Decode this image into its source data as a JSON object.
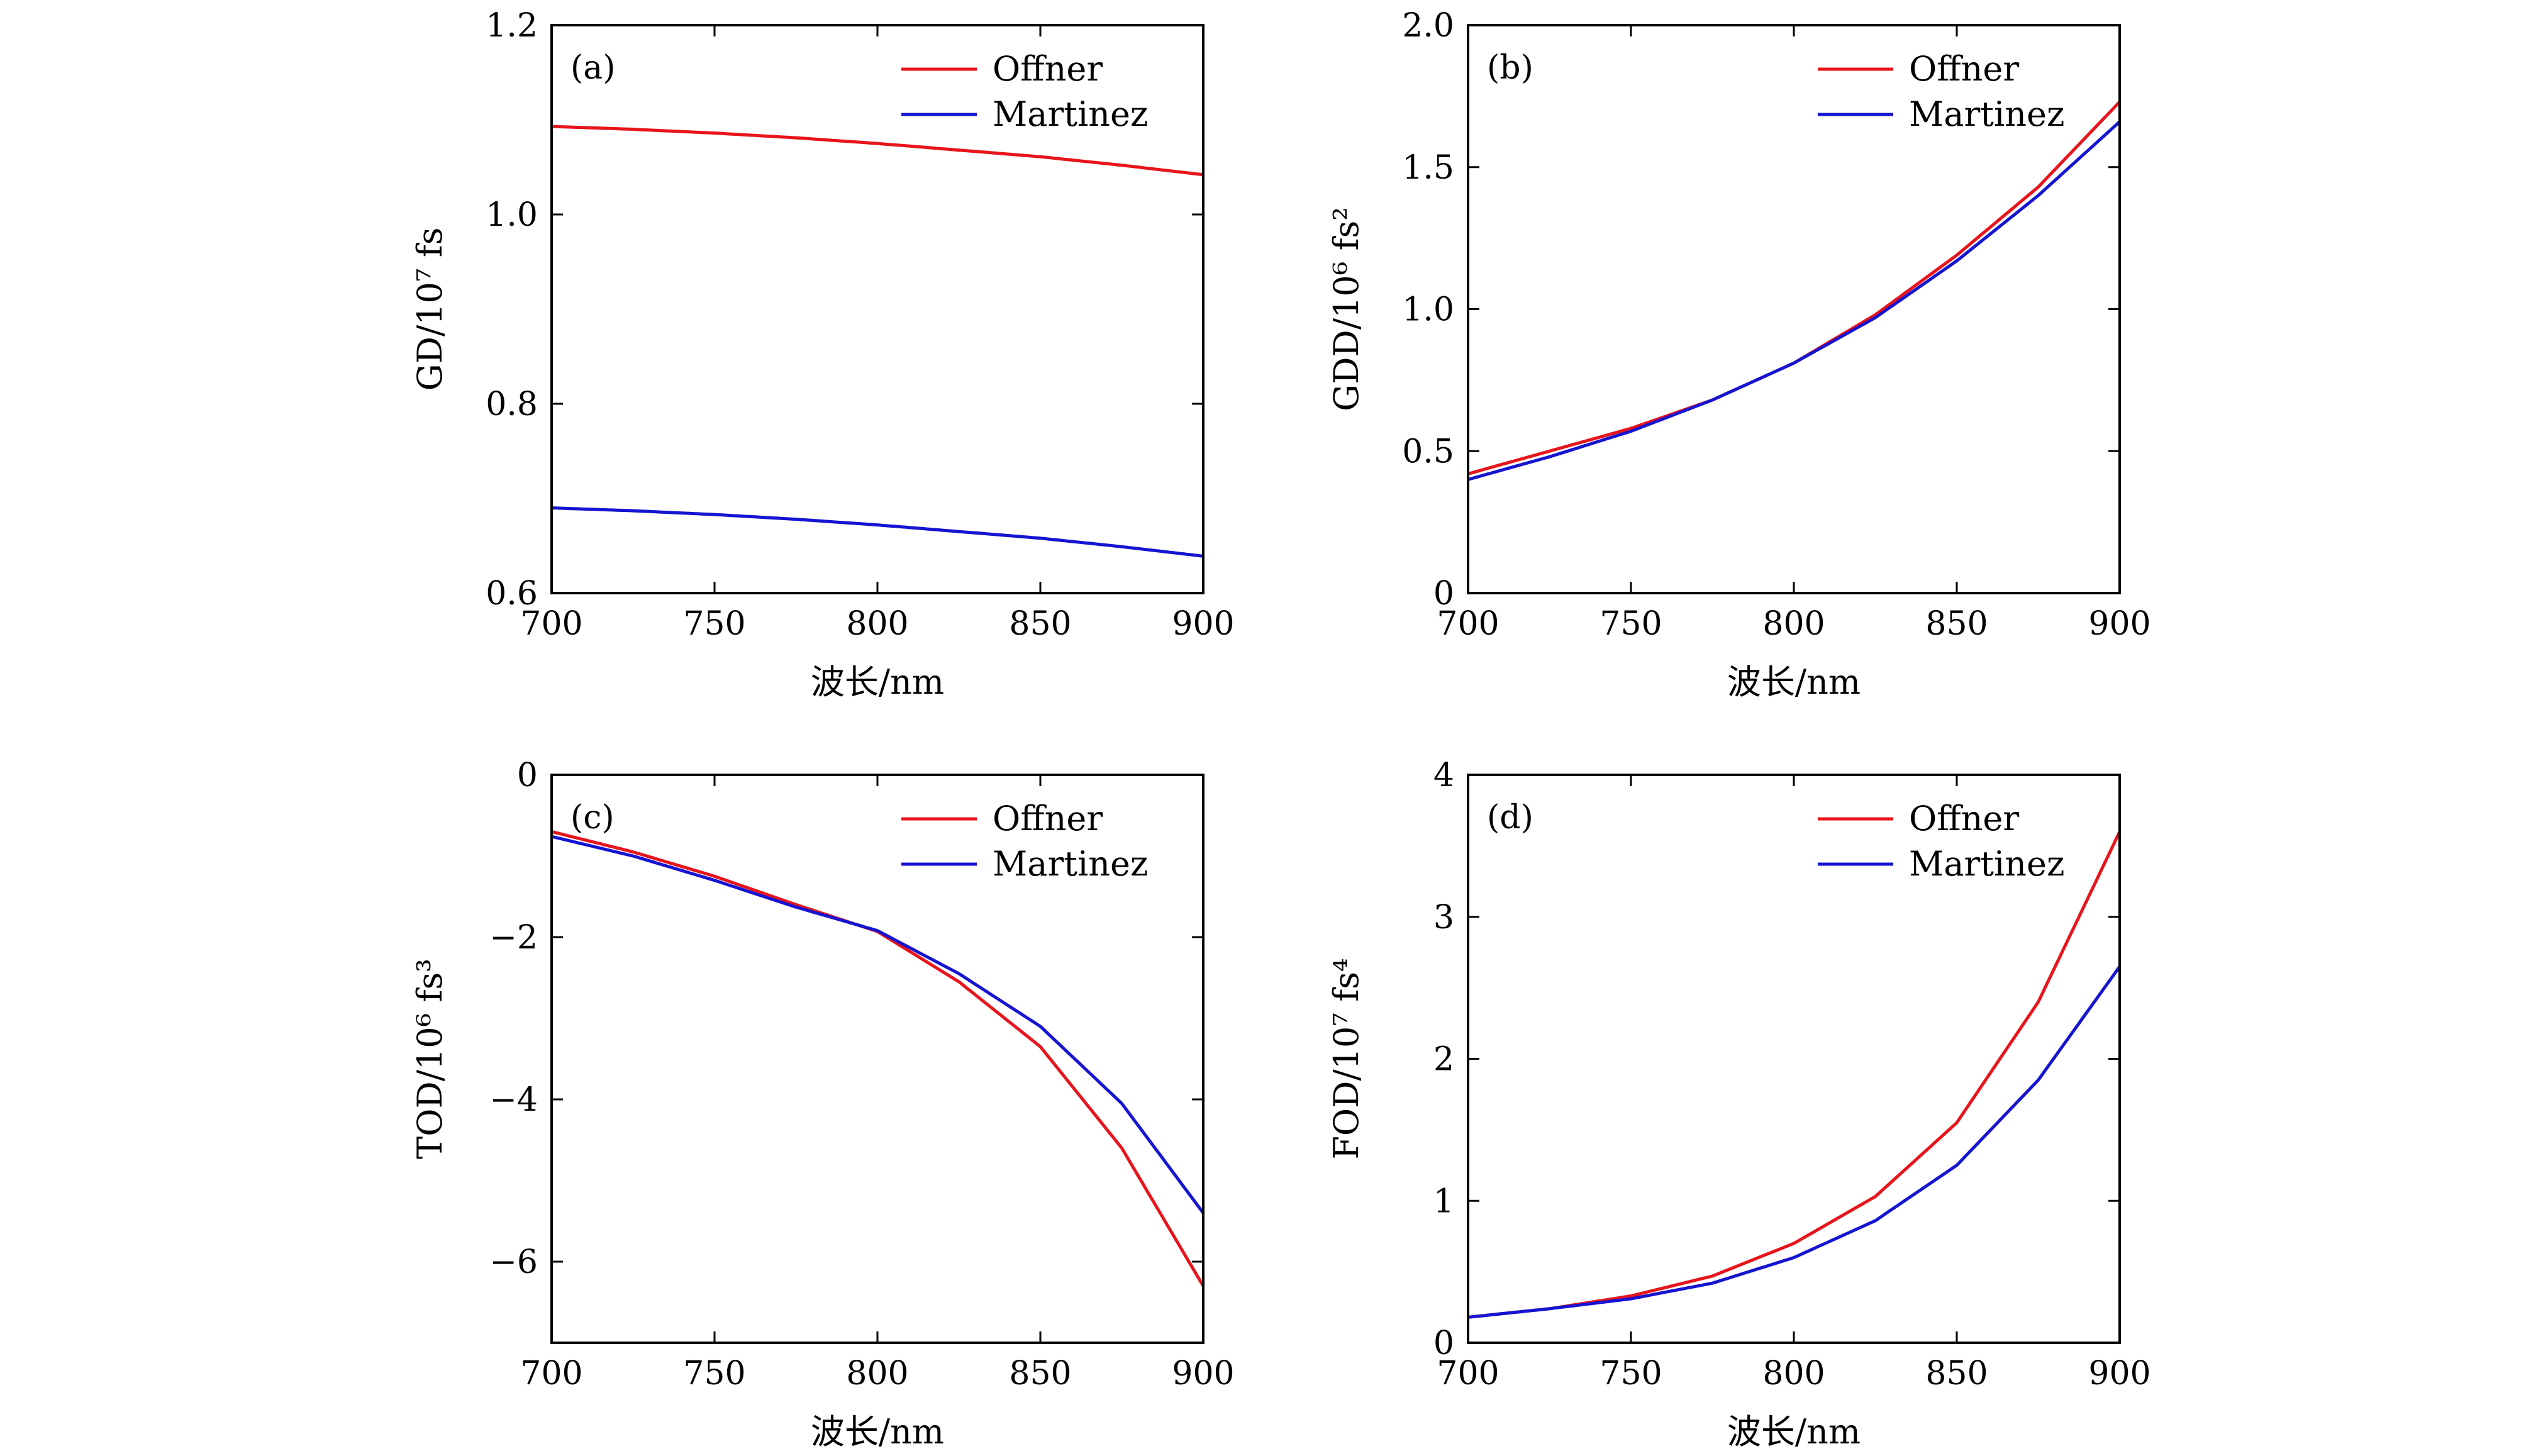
{
  "colors": {
    "offner": "#e8141c",
    "martinez": "#1414d2",
    "axis": "#000000"
  },
  "chart_data": [
    {
      "type": "line",
      "panel_label": "(a)",
      "xlabel": "波长/nm",
      "ylabel": "GD/10⁷ fs",
      "xlim": [
        700,
        900
      ],
      "ylim": [
        0.6,
        1.2
      ],
      "xticks": [
        700,
        750,
        800,
        850,
        900
      ],
      "xtick_labels": [
        "700",
        "750",
        "800",
        "850",
        "900"
      ],
      "yticks": [
        0.6,
        0.8,
        1.0,
        1.2
      ],
      "ytick_labels": [
        "0.6",
        "0.8",
        "1.0",
        "1.2"
      ],
      "legend_position": "top-right",
      "x": [
        700,
        725,
        750,
        775,
        800,
        825,
        850,
        875,
        900
      ],
      "series": [
        {
          "name": "Offner",
          "color": "#e8141c",
          "values": [
            1.093,
            1.09,
            1.086,
            1.081,
            1.075,
            1.068,
            1.061,
            1.052,
            1.042
          ]
        },
        {
          "name": "Martinez",
          "color": "#1414d2",
          "values": [
            0.69,
            0.687,
            0.683,
            0.678,
            0.672,
            0.665,
            0.658,
            0.649,
            0.639
          ]
        }
      ]
    },
    {
      "type": "line",
      "panel_label": "(b)",
      "xlabel": "波长/nm",
      "ylabel": "GDD/10⁶ fs²",
      "xlim": [
        700,
        900
      ],
      "ylim": [
        0,
        2.0
      ],
      "xticks": [
        700,
        750,
        800,
        850,
        900
      ],
      "xtick_labels": [
        "700",
        "750",
        "800",
        "850",
        "900"
      ],
      "yticks": [
        0,
        0.5,
        1.0,
        1.5,
        2.0
      ],
      "ytick_labels": [
        "0",
        "0.5",
        "1.0",
        "1.5",
        "2.0"
      ],
      "legend_position": "top-right",
      "x": [
        700,
        725,
        750,
        775,
        800,
        825,
        850,
        875,
        900
      ],
      "series": [
        {
          "name": "Offner",
          "color": "#e8141c",
          "values": [
            0.42,
            0.5,
            0.58,
            0.68,
            0.81,
            0.98,
            1.19,
            1.43,
            1.73
          ]
        },
        {
          "name": "Martinez",
          "color": "#1414d2",
          "values": [
            0.4,
            0.48,
            0.57,
            0.68,
            0.81,
            0.97,
            1.17,
            1.4,
            1.66
          ]
        }
      ]
    },
    {
      "type": "line",
      "panel_label": "(c)",
      "xlabel": "波长/nm",
      "ylabel": "TOD/10⁶ fs³",
      "xlim": [
        700,
        900
      ],
      "ylim": [
        -7,
        0
      ],
      "xticks": [
        700,
        750,
        800,
        850,
        900
      ],
      "xtick_labels": [
        "700",
        "750",
        "800",
        "850",
        "900"
      ],
      "yticks": [
        -6,
        -4,
        -2,
        0
      ],
      "ytick_labels": [
        "−6",
        "−4",
        "−2",
        "0"
      ],
      "legend_position": "top-right",
      "x": [
        700,
        725,
        750,
        775,
        800,
        825,
        850,
        875,
        900
      ],
      "series": [
        {
          "name": "Offner",
          "color": "#e8141c",
          "values": [
            -0.7,
            -0.95,
            -1.25,
            -1.6,
            -1.93,
            -2.55,
            -3.35,
            -4.6,
            -6.3
          ]
        },
        {
          "name": "Martinez",
          "color": "#1414d2",
          "values": [
            -0.76,
            -1.0,
            -1.3,
            -1.63,
            -1.92,
            -2.45,
            -3.1,
            -4.05,
            -5.4
          ]
        }
      ]
    },
    {
      "type": "line",
      "panel_label": "(d)",
      "xlabel": "波长/nm",
      "ylabel": "FOD/10⁷ fs⁴",
      "xlim": [
        700,
        900
      ],
      "ylim": [
        0,
        4
      ],
      "xticks": [
        700,
        750,
        800,
        850,
        900
      ],
      "xtick_labels": [
        "700",
        "750",
        "800",
        "850",
        "900"
      ],
      "yticks": [
        0,
        1,
        2,
        3,
        4
      ],
      "ytick_labels": [
        "0",
        "1",
        "2",
        "3",
        "4"
      ],
      "legend_position": "top-right",
      "x": [
        700,
        725,
        750,
        775,
        800,
        825,
        850,
        875,
        900
      ],
      "series": [
        {
          "name": "Offner",
          "color": "#e8141c",
          "values": [
            0.18,
            0.24,
            0.33,
            0.47,
            0.7,
            1.03,
            1.55,
            2.4,
            3.6
          ]
        },
        {
          "name": "Martinez",
          "color": "#1414d2",
          "values": [
            0.18,
            0.24,
            0.31,
            0.42,
            0.6,
            0.86,
            1.25,
            1.85,
            2.65
          ]
        }
      ]
    }
  ]
}
